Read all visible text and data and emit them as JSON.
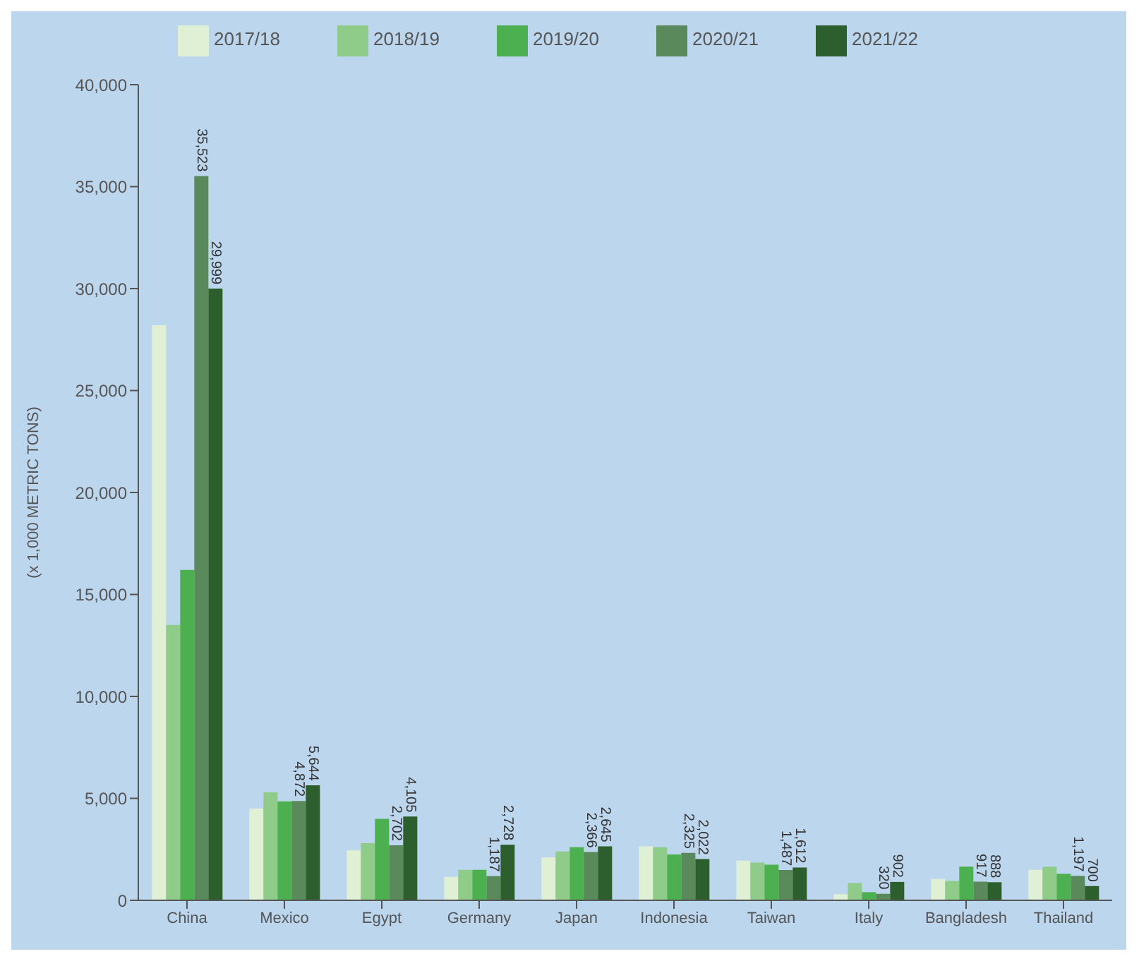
{
  "chart_data": {
    "type": "bar",
    "ylabel": "(x 1,000 METRIC TONS)",
    "categories": [
      "China",
      "Mexico",
      "Egypt",
      "Germany",
      "Japan",
      "Indonesia",
      "Taiwan",
      "Italy",
      "Bangladesh",
      "Thailand"
    ],
    "series": [
      {
        "name": "2017/18",
        "color": "#e0f0d4",
        "values": [
          28200,
          4500,
          2450,
          1150,
          2100,
          2650,
          1950,
          300,
          1050,
          1500
        ]
      },
      {
        "name": "2018/19",
        "color": "#8fcc8a",
        "values": [
          13500,
          5300,
          2800,
          1500,
          2400,
          2600,
          1850,
          850,
          950,
          1650
        ]
      },
      {
        "name": "2019/20",
        "color": "#4caf50",
        "values": [
          16200,
          4850,
          4000,
          1500,
          2600,
          2250,
          1750,
          400,
          1650,
          1300
        ]
      },
      {
        "name": "2020/21",
        "color": "#5a8a5c",
        "values": [
          35523,
          4872,
          2702,
          1187,
          2366,
          2325,
          1487,
          320,
          917,
          1197
        ],
        "value_labels": [
          "35,523",
          "4,872",
          "2,702",
          "1,187",
          "2,366",
          "2,325",
          "1,487",
          "320",
          "917",
          "1,197"
        ]
      },
      {
        "name": "2021/22",
        "color": "#2d5e2e",
        "values": [
          29999,
          5644,
          4105,
          2728,
          2645,
          2022,
          1612,
          902,
          888,
          700
        ],
        "value_labels": [
          "29,999",
          "5,644",
          "4,105",
          "2,728",
          "2,645",
          "2,022",
          "1,612",
          "902",
          "888",
          "700"
        ]
      }
    ],
    "ylim": [
      0,
      40000
    ],
    "yticks": [
      0,
      {
        "value": 5000,
        "label": "5,000"
      },
      {
        "value": 10000,
        "label": "10,000"
      },
      {
        "value": 15000,
        "label": "15,000"
      },
      {
        "value": 20000,
        "label": "20,000"
      },
      {
        "value": 25000,
        "label": "25,000"
      },
      {
        "value": 30000,
        "label": "30,000"
      },
      {
        "value": 35000,
        "label": "35,000"
      },
      {
        "value": 40000,
        "label": "40,000"
      }
    ],
    "grid": false,
    "legend": "top"
  }
}
